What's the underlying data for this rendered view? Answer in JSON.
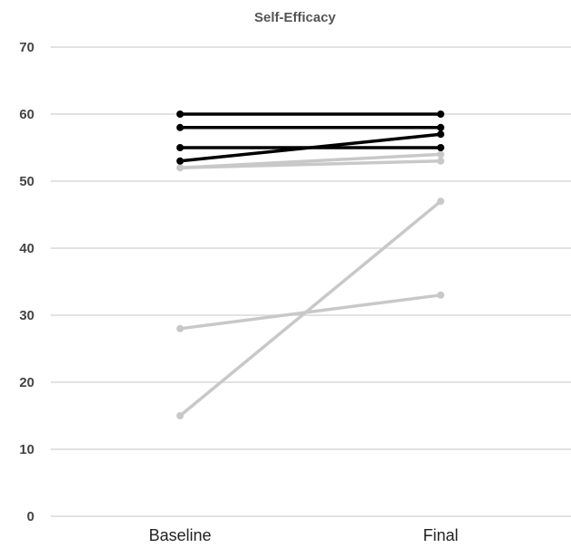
{
  "chart_data": {
    "type": "line",
    "title": "Self-Efficacy",
    "xlabel": "",
    "ylabel": "",
    "categories": [
      "Baseline",
      "Final"
    ],
    "ylim": [
      0,
      70
    ],
    "yticks": [
      0,
      10,
      20,
      30,
      40,
      50,
      60,
      70
    ],
    "grid": true,
    "legend": "none",
    "colors": {
      "dark": "#000000",
      "light": "#c8c8c8"
    },
    "series": [
      {
        "values": [
          52,
          54
        ],
        "color": "light"
      },
      {
        "values": [
          52,
          53
        ],
        "color": "light"
      },
      {
        "values": [
          28,
          33
        ],
        "color": "light"
      },
      {
        "values": [
          15,
          47
        ],
        "color": "light"
      },
      {
        "values": [
          60,
          60
        ],
        "color": "dark"
      },
      {
        "values": [
          58,
          58
        ],
        "color": "dark"
      },
      {
        "values": [
          55,
          55
        ],
        "color": "dark"
      },
      {
        "values": [
          53,
          57
        ],
        "color": "dark"
      }
    ]
  }
}
